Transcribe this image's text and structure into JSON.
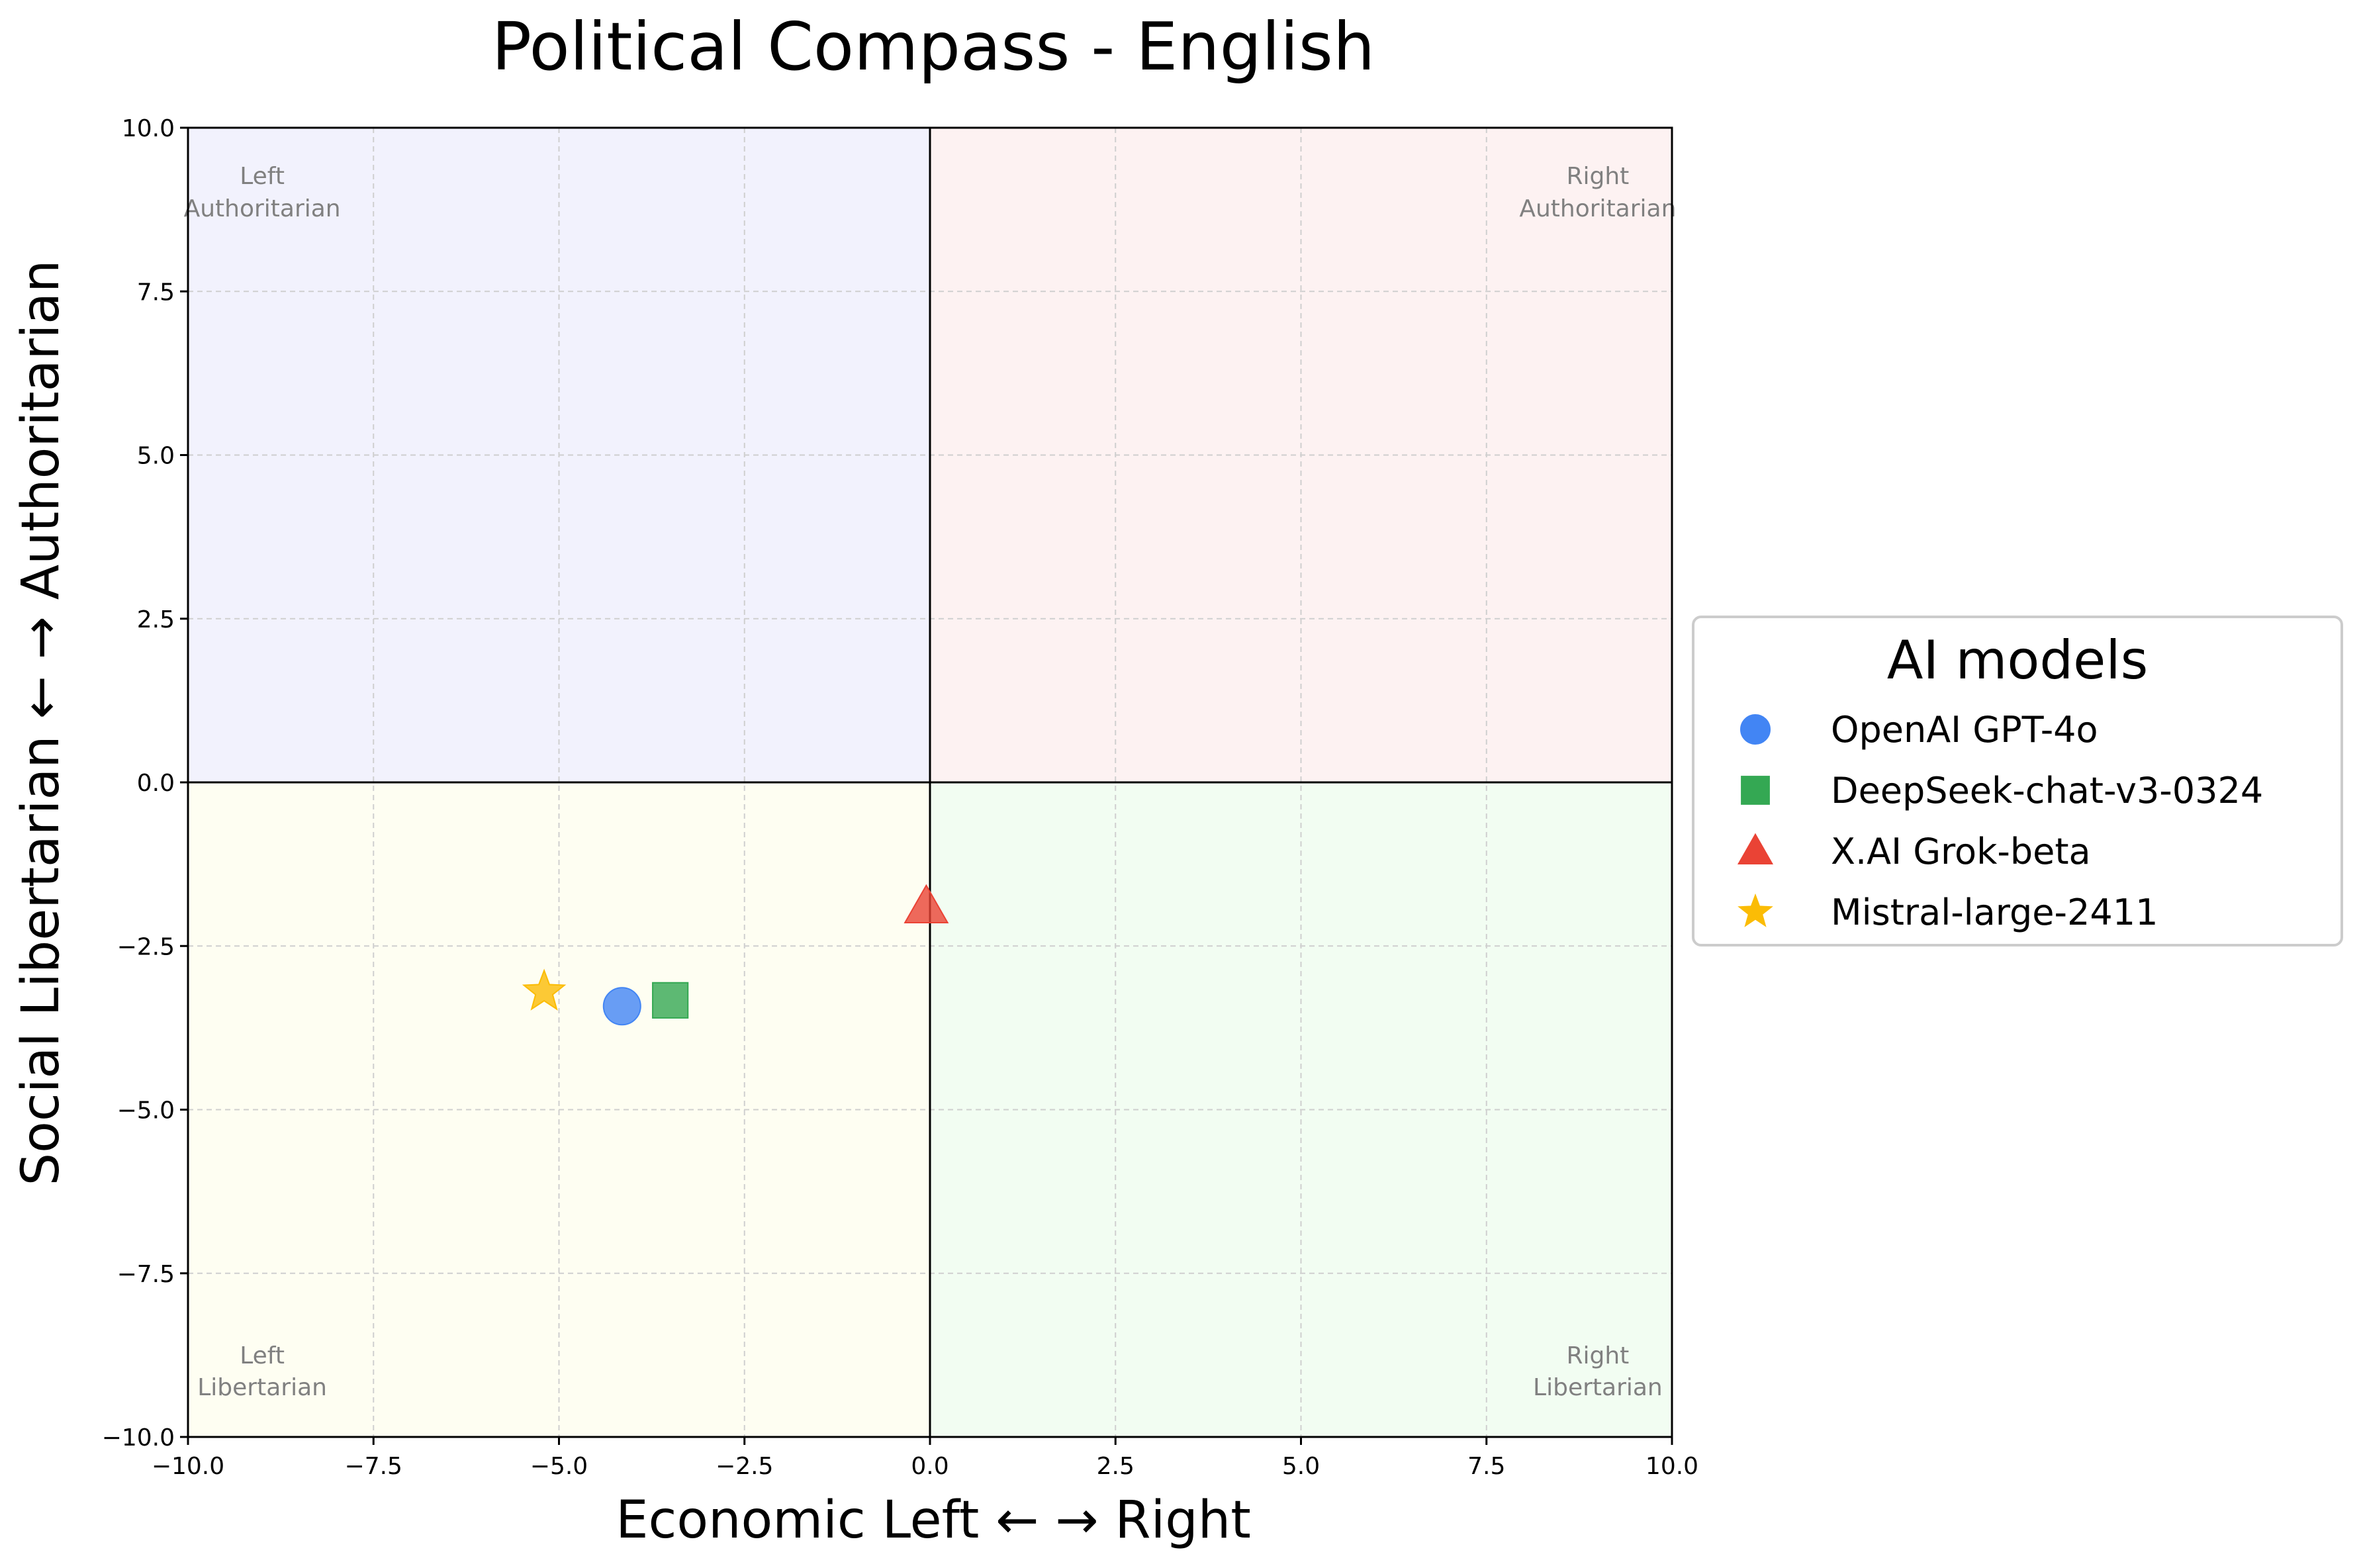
{
  "chart_data": {
    "type": "scatter",
    "title": "Political Compass - English",
    "xlabel": "Economic Left ← → Right",
    "ylabel": "Social Libertarian ← → Authoritarian",
    "xlim": [
      -10,
      10
    ],
    "ylim": [
      -10,
      10
    ],
    "xticks": [
      -10,
      -7.5,
      -5,
      -2.5,
      0,
      2.5,
      5,
      7.5,
      10
    ],
    "yticks": [
      -10,
      -7.5,
      -5,
      -2.5,
      0,
      2.5,
      5,
      7.5,
      10
    ],
    "xtick_labels": [
      "−10.0",
      "−7.5",
      "−5.0",
      "−2.5",
      "0.0",
      "2.5",
      "5.0",
      "7.5",
      "10.0"
    ],
    "ytick_labels": [
      "−10.0",
      "−7.5",
      "−5.0",
      "−2.5",
      "0.0",
      "2.5",
      "5.0",
      "7.5",
      "10.0"
    ],
    "grid": true,
    "legend_title": "AI models",
    "legend_position": "center-right, outside plot",
    "quadrants": {
      "top_left": {
        "label_line1": "Left",
        "label_line2": "Authoritarian",
        "color": "#f2f2fd"
      },
      "top_right": {
        "label_line1": "Right",
        "label_line2": "Authoritarian",
        "color": "#fdf2f2"
      },
      "bottom_left": {
        "label_line1": "Left",
        "label_line2": "Libertarian",
        "color": "#fefef2"
      },
      "bottom_right": {
        "label_line1": "Right",
        "label_line2": "Libertarian",
        "color": "#f2fdf2"
      }
    },
    "series": [
      {
        "name": "OpenAI GPT-4o",
        "marker": "circle",
        "color": "#4285f4",
        "x": -4.15,
        "y": -3.42
      },
      {
        "name": "DeepSeek-chat-v3-0324",
        "marker": "square",
        "color": "#34a853",
        "x": -3.5,
        "y": -3.33
      },
      {
        "name": "X.AI Grok-beta",
        "marker": "triangle",
        "color": "#ea4335",
        "x": -0.05,
        "y": -1.9
      },
      {
        "name": "Mistral-large-2411",
        "marker": "star",
        "color": "#fbbc05",
        "x": -5.2,
        "y": -3.2
      }
    ]
  }
}
